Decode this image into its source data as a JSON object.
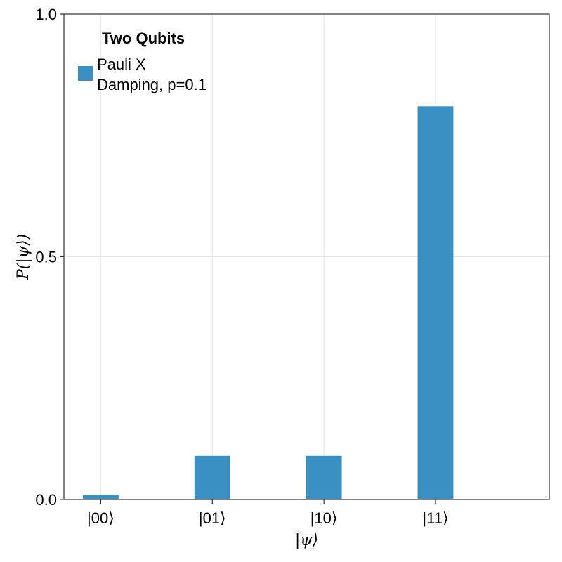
{
  "chart_data": {
    "type": "bar",
    "categories": [
      "|00⟩",
      "|01⟩",
      "|10⟩",
      "|11⟩"
    ],
    "series": [
      {
        "name": "Pauli X\nDamping, p=0.1",
        "values": [
          0.01,
          0.09,
          0.09,
          0.81
        ],
        "color": "#3a8fc3"
      }
    ],
    "xlabel": "|ψ⟩",
    "ylabel": "P(|ψ⟩)",
    "ylim": [
      0,
      1.0
    ],
    "yticks": [
      "0.0",
      "0.5",
      "1.0"
    ],
    "grid": true,
    "legend": {
      "title": "Two Qubits",
      "placement": "top-left"
    }
  }
}
